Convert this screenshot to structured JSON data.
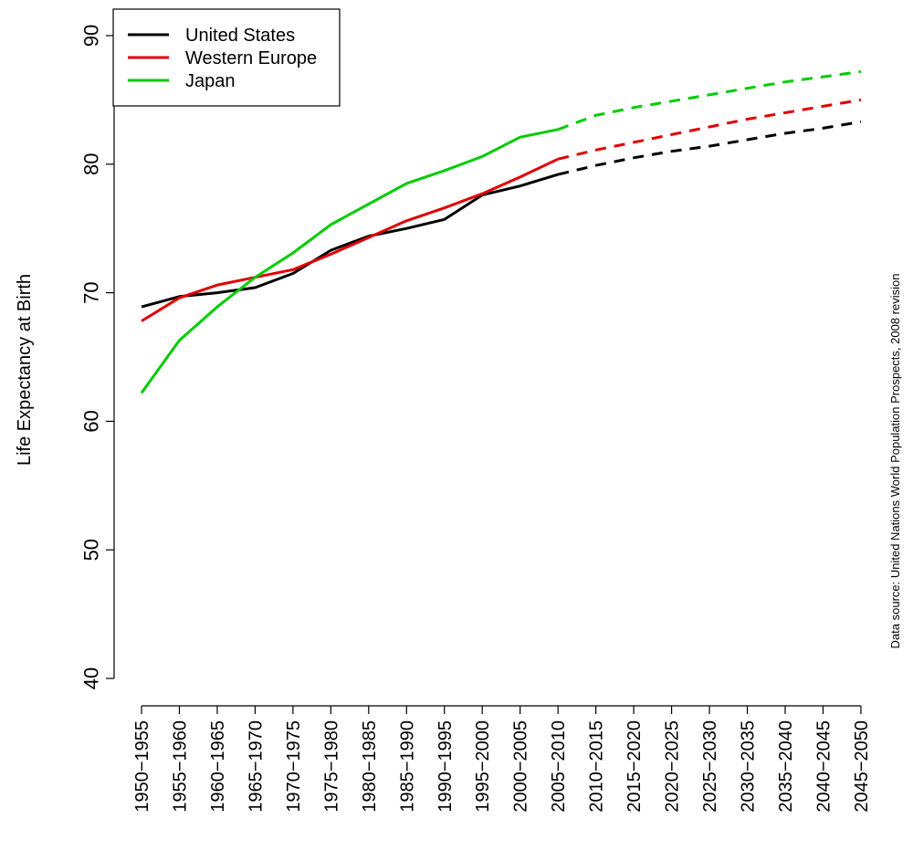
{
  "chart_data": {
    "type": "line",
    "ylabel": "Life Expectancy at Birth",
    "source_note": "Data source: United Nations World Population Prospects, 2008 revision",
    "ylim": [
      40,
      90
    ],
    "yticks": [
      40,
      50,
      60,
      70,
      80,
      90
    ],
    "categories": [
      "1950−1955",
      "1955−1960",
      "1960−1965",
      "1965−1970",
      "1970−1975",
      "1975−1980",
      "1980−1985",
      "1985−1990",
      "1990−1995",
      "1995−2000",
      "2000−2005",
      "2005−2010",
      "2010−2015",
      "2015−2020",
      "2020−2025",
      "2025−2030",
      "2030−2035",
      "2035−2040",
      "2040−2045",
      "2045−2050"
    ],
    "legend_position": "top-left",
    "grid": false,
    "series": [
      {
        "name": "United States",
        "color": "#000000",
        "observed": [
          68.9,
          69.7,
          70.0,
          70.4,
          71.5,
          73.3,
          74.4,
          75.0,
          75.7,
          77.6,
          78.3,
          79.2
        ],
        "projected": [
          79.2,
          79.9,
          80.5,
          81.0,
          81.4,
          81.9,
          82.4,
          82.8,
          83.3
        ]
      },
      {
        "name": "Western Europe",
        "color": "#e00000",
        "observed": [
          67.8,
          69.6,
          70.6,
          71.2,
          71.8,
          73.0,
          74.3,
          75.6,
          76.6,
          77.7,
          79.0,
          80.4
        ],
        "projected": [
          80.4,
          81.1,
          81.7,
          82.3,
          82.9,
          83.5,
          84.0,
          84.5,
          85.0
        ]
      },
      {
        "name": "Japan",
        "color": "#00cc00",
        "observed": [
          62.2,
          66.3,
          68.9,
          71.2,
          73.1,
          75.3,
          76.9,
          78.5,
          79.5,
          80.6,
          82.1,
          82.7
        ],
        "projected": [
          82.7,
          83.8,
          84.4,
          84.9,
          85.4,
          85.9,
          86.4,
          86.8,
          87.2
        ]
      }
    ]
  }
}
